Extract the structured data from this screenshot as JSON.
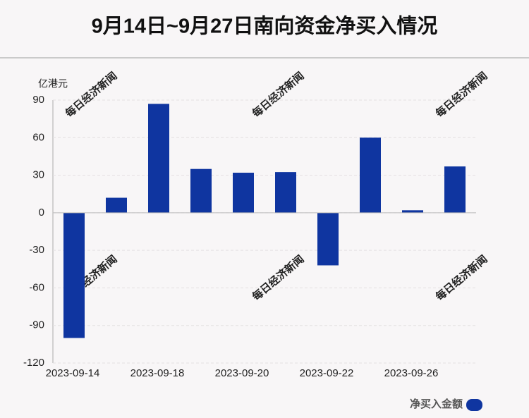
{
  "chart_data": {
    "type": "bar",
    "title": "9月14日~9月27日南向资金净买入情况",
    "y_unit": "亿港元",
    "watermark": "每日经济新闻",
    "categories": [
      "2023-09-14",
      null,
      "2023-09-18",
      null,
      "2023-09-20",
      null,
      "2023-09-22",
      null,
      "2023-09-26",
      null
    ],
    "series": [
      {
        "name": "净买入金额",
        "color": "#0f35a0",
        "values": [
          -100,
          12,
          87,
          35,
          32,
          32.5,
          -42,
          60,
          2,
          37
        ]
      }
    ],
    "ylim": [
      -120,
      90
    ],
    "yticks": [
      90,
      60,
      30,
      0,
      -30,
      -60,
      -90,
      -120
    ],
    "grid": true,
    "legend": "bottom-right"
  }
}
